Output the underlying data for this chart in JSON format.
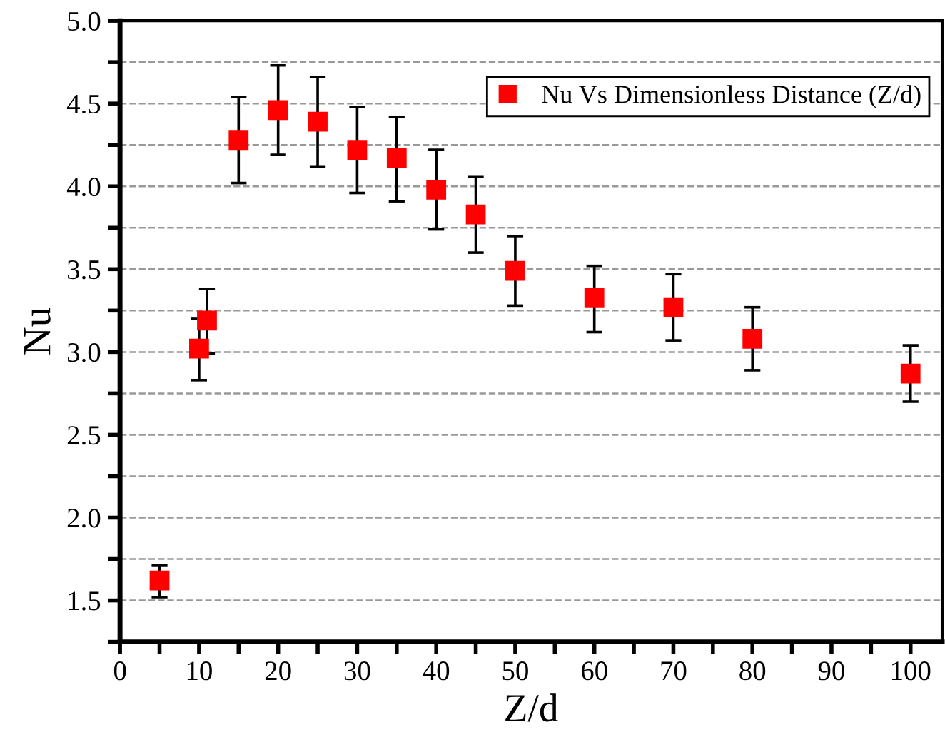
{
  "chart_data": {
    "type": "scatter",
    "xlabel": "Z/d",
    "ylabel": "Nu",
    "x": [
      5,
      10,
      11,
      15,
      20,
      25,
      30,
      35,
      40,
      45,
      50,
      60,
      70,
      80,
      100
    ],
    "series": [
      {
        "name": "Nu Vs Dimensionless Distance (Z/d)",
        "color": "#ff0000",
        "values": [
          1.62,
          3.02,
          3.19,
          4.28,
          4.46,
          4.39,
          4.22,
          4.17,
          3.98,
          3.83,
          3.49,
          3.33,
          3.27,
          3.08,
          2.87
        ],
        "errors": [
          [
            1.52,
            1.71
          ],
          [
            2.83,
            3.2
          ],
          [
            2.99,
            3.38
          ],
          [
            4.02,
            4.54
          ],
          [
            4.19,
            4.73
          ],
          [
            4.12,
            4.66
          ],
          [
            3.96,
            4.48
          ],
          [
            3.91,
            4.42
          ],
          [
            3.74,
            4.22
          ],
          [
            3.6,
            4.06
          ],
          [
            3.28,
            3.7
          ],
          [
            3.12,
            3.52
          ],
          [
            3.07,
            3.47
          ],
          [
            2.89,
            3.27
          ],
          [
            2.7,
            3.04
          ]
        ]
      }
    ],
    "marker": "square",
    "grid": "y",
    "legend": "top right",
    "xlim": [
      0,
      104
    ],
    "ylim": [
      1.25,
      5.0
    ],
    "xticks": [
      0,
      {
        "value": 5,
        "label": null
      },
      10,
      {
        "value": 15,
        "label": null
      },
      20,
      {
        "value": 25,
        "label": null
      },
      30,
      {
        "value": 35,
        "label": null
      },
      40,
      {
        "value": 45,
        "label": null
      },
      50,
      {
        "value": 55,
        "label": null
      },
      60,
      {
        "value": 65,
        "label": null
      },
      70,
      {
        "value": 75,
        "label": null
      },
      80,
      {
        "value": 85,
        "label": null
      },
      90,
      {
        "value": 95,
        "label": null
      },
      100
    ],
    "yticks": [
      {
        "value": 1.25,
        "label": null
      },
      1.5,
      {
        "value": 1.75,
        "label": null
      },
      {
        "value": 2.0,
        "label": "2.0"
      },
      {
        "value": 2.25,
        "label": null
      },
      2.5,
      {
        "value": 2.75,
        "label": null
      },
      {
        "value": 3.0,
        "label": "3.0"
      },
      {
        "value": 3.25,
        "label": null
      },
      3.5,
      {
        "value": 3.75,
        "label": null
      },
      {
        "value": 4.0,
        "label": "4.0"
      },
      {
        "value": 4.25,
        "label": null
      },
      4.5,
      {
        "value": 4.75,
        "label": null
      },
      {
        "value": 5.0,
        "label": "5.0"
      }
    ]
  }
}
